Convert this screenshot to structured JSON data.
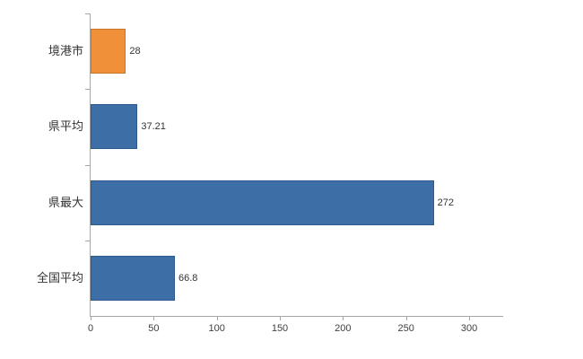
{
  "chart_data": {
    "type": "bar",
    "orientation": "horizontal",
    "title": "",
    "xlabel": "",
    "ylabel": "",
    "categories": [
      "境港市",
      "県平均",
      "県最大",
      "全国平均"
    ],
    "values": [
      28,
      37.21,
      272,
      66.8
    ],
    "value_labels": [
      "28",
      "37.21",
      "272",
      "66.8"
    ],
    "bar_colors": [
      "#f0913a",
      "#3d6ea6",
      "#3d6ea6",
      "#3d6ea6"
    ],
    "bar_border_colors": [
      "#c9762a",
      "#2c5a8f",
      "#2c5a8f",
      "#2c5a8f"
    ],
    "xticks": [
      0,
      50,
      100,
      150,
      200,
      250,
      300
    ],
    "xtick_labels": [
      "0",
      "50",
      "100",
      "150",
      "200",
      "250",
      "300"
    ],
    "xlim": [
      0,
      327
    ],
    "grid": false,
    "legend": "none",
    "axis_color": "#a6a6a6"
  }
}
